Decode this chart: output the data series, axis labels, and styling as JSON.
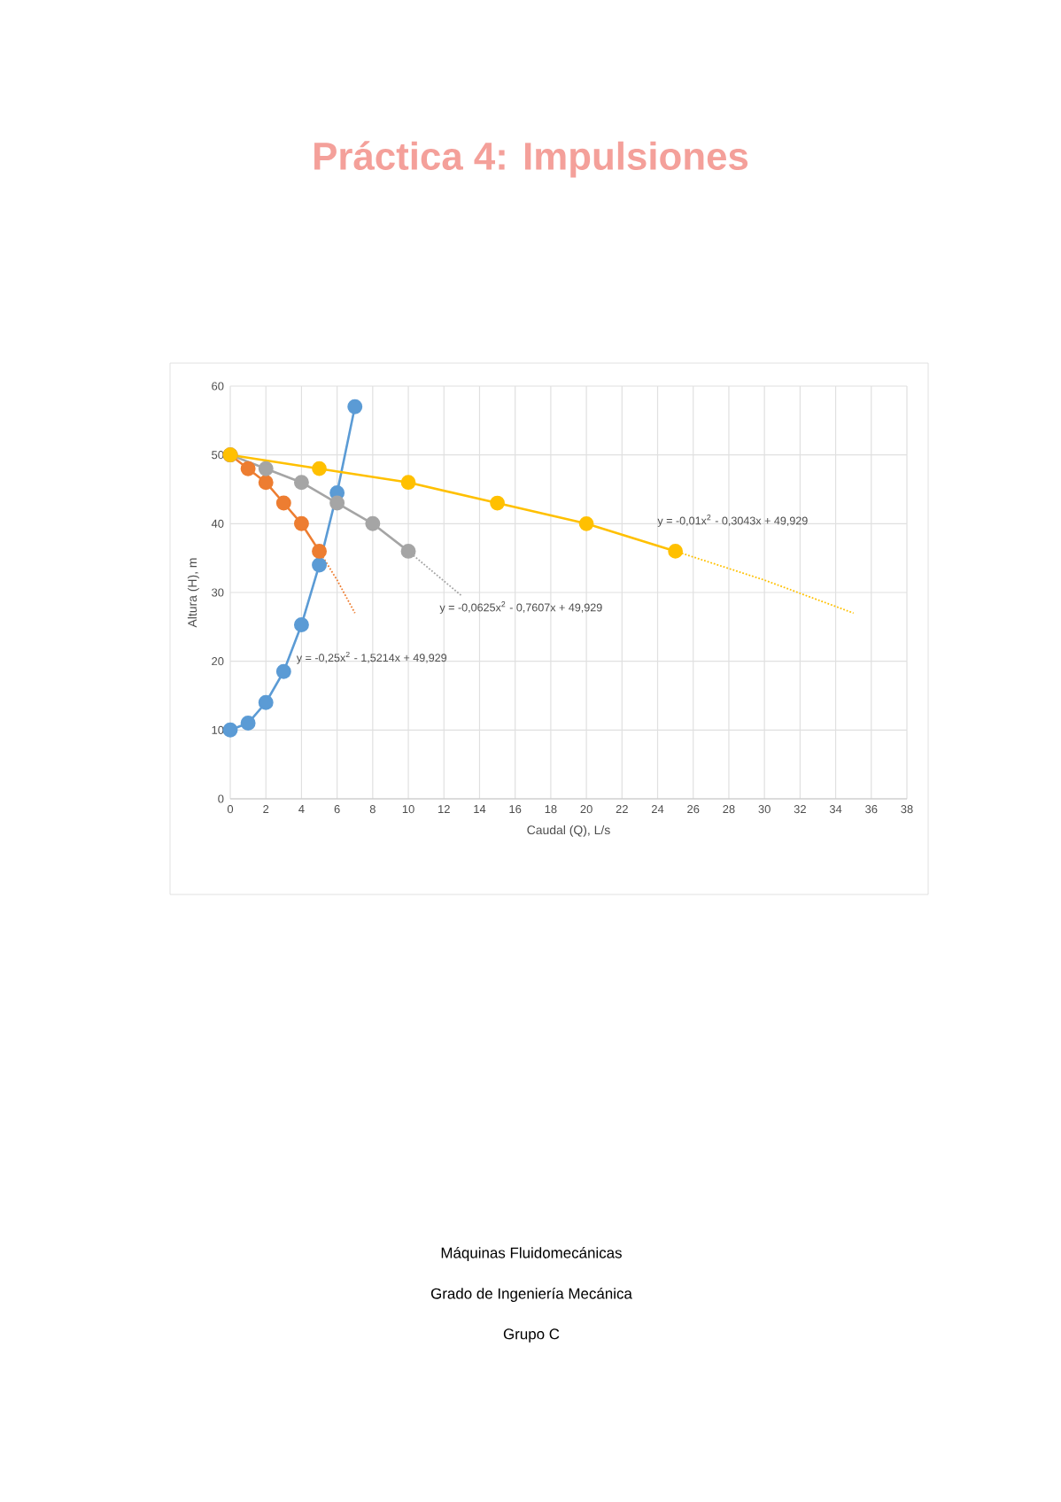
{
  "chart_data": {
    "type": "line",
    "title": "Práctica 4: Impulsiones",
    "xlabel": "Caudal (Q), L/s",
    "ylabel": "Altura (H), m",
    "xlim": [
      0,
      38
    ],
    "ylim": [
      0,
      60
    ],
    "xticks": [
      0,
      2,
      4,
      6,
      8,
      10,
      12,
      14,
      16,
      18,
      20,
      22,
      24,
      26,
      28,
      30,
      32,
      34,
      36,
      38
    ],
    "yticks": [
      0,
      10,
      20,
      30,
      40,
      50,
      60
    ],
    "grid": true,
    "marker": "circle",
    "line_style": "solid",
    "series": [
      {
        "color": "#5b9bd5",
        "x": [
          0,
          1,
          2,
          3,
          4,
          5,
          6,
          7
        ],
        "values": [
          10,
          11,
          14,
          18.5,
          25.3,
          34,
          44.5,
          57
        ]
      },
      {
        "color": "#ed7d31",
        "x": [
          0,
          1,
          2,
          3,
          4,
          5
        ],
        "values": [
          50,
          48,
          46,
          43,
          40,
          36
        ]
      },
      {
        "color": "#a5a5a5",
        "x": [
          0,
          2,
          4,
          6,
          8,
          10
        ],
        "values": [
          50,
          48,
          46,
          43,
          40,
          36
        ]
      },
      {
        "color": "#ffc000",
        "x": [
          0,
          5,
          10,
          15,
          20,
          25
        ],
        "values": [
          50,
          48,
          46,
          43,
          40,
          36
        ]
      },
      {
        "color": "#ed7d31",
        "x": [
          5,
          6,
          7
        ],
        "values": [
          36,
          31.8,
          27
        ],
        "marker": "none",
        "line_style": "dotted"
      },
      {
        "color": "#a5a5a5",
        "x": [
          10,
          13
        ],
        "values": [
          36,
          29.5
        ],
        "marker": "none",
        "line_style": "dotted"
      },
      {
        "color": "#ffc000",
        "x": [
          25,
          30,
          35
        ],
        "values": [
          36,
          31.8,
          27
        ],
        "marker": "none",
        "line_style": "dotted"
      }
    ],
    "annotations": [
      {
        "text": "y = -0,25x$^{2}$ - 1,5214x + 49,929",
        "x": 3.7,
        "y": 20.5
      },
      "y = -0,0625x$^{2}$ - 0,7607x + 49,929",
      "y = -0,01x$^{2}$ - 0,3043x + 49,929",
      "Máquinas Fluidomecánicas",
      "Grado de Ingeniería Mecánica",
      "Grupo C"
    ]
  }
}
